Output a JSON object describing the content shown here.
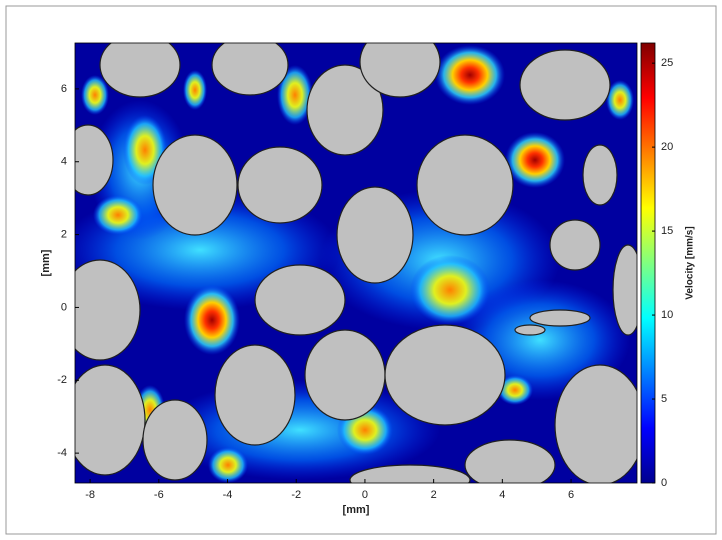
{
  "chart_data": {
    "type": "heatmap",
    "xlabel": "[mm]",
    "ylabel": "[mm]",
    "xlim": [
      -8.44,
      7.92
    ],
    "xticks": [
      -8,
      -6,
      -4,
      -2,
      0,
      2,
      4,
      6
    ],
    "ylim": [
      -4.82,
      7.26
    ],
    "yticks": [
      -4,
      -2,
      0,
      2,
      4,
      6
    ],
    "colormap": "jet",
    "colorbar": {
      "label": "Velocity [mm/s]",
      "lim": [
        0,
        26.2
      ],
      "ticks": [
        0,
        5,
        10,
        15,
        20,
        25
      ]
    }
  }
}
